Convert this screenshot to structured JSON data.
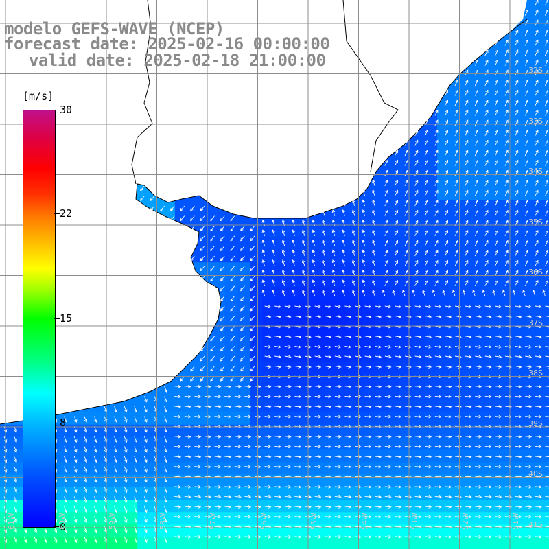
{
  "title": {
    "line1": "modelo GEFS-WAVE (NCEP)",
    "line2": "forecast date: 2025-02-16 00:00:00",
    "line3": "valid date: 2025-02-18 21:00:00"
  },
  "colorbar": {
    "unit": "[m/s]",
    "ticks": [
      {
        "label": "30",
        "value": 30
      },
      {
        "label": "22",
        "value": 22
      },
      {
        "label": "15",
        "value": 15
      },
      {
        "label": "8",
        "value": 8
      },
      {
        "label": "0",
        "value": 0
      }
    ],
    "min": 0,
    "max": 30
  },
  "grid": {
    "color": "#8c8c8c"
  },
  "colors": {
    "land": "#ffffff",
    "coast": "#000000",
    "arrow": "#ffffff"
  },
  "lat_labels": [
    "32S",
    "33S",
    "34S",
    "35S",
    "36S",
    "37S",
    "38S",
    "39S",
    "40S",
    "41S"
  ],
  "lon_labels": [
    "61W",
    "60W",
    "59W",
    "58W",
    "57W",
    "56W",
    "55W",
    "54W",
    "53W",
    "52W",
    "51W"
  ]
}
